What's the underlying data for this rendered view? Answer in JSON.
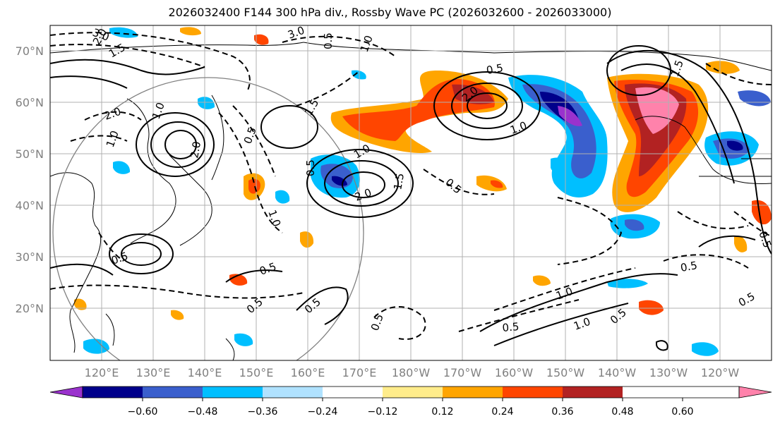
{
  "title": "2026032400 F144 300 hPa div., Rossby Wave PC (2026032600 - 2026033000)",
  "map": {
    "lat_labels": [
      "70°N",
      "60°N",
      "50°N",
      "40°N",
      "30°N",
      "20°N"
    ],
    "lon_labels": [
      "120°E",
      "130°E",
      "140°E",
      "150°E",
      "160°E",
      "170°E",
      "180°W",
      "170°W",
      "160°W",
      "150°W",
      "140°W",
      "130°W",
      "120°W"
    ],
    "contour_labels": [
      "3.0",
      "3.0",
      "1.5",
      "2.0",
      "1.0",
      "1.5",
      "0.5",
      "1.0",
      "2.0",
      "1.0",
      "2.0",
      "0.5",
      "1.0",
      "0.5",
      "2.0",
      "1.5",
      "1.0",
      "2.0",
      "0.5",
      "1.0",
      "0.5",
      "0.5",
      "0.5",
      "0.5",
      "0.5",
      "0.5",
      "1.0",
      "0.5",
      "1.0",
      "1.5",
      "0.5",
      "0.5",
      "0.5",
      "0.5"
    ],
    "colors": {
      "land_outline": "#000000",
      "grid": "#b0b0b0",
      "circle": "#808080"
    }
  },
  "colorbar": {
    "colors": [
      "#9a32cd",
      "#00008b",
      "#3a5fcd",
      "#00bfff",
      "#b0e2ff",
      "#ffffff",
      "#ffec8b",
      "#ffa500",
      "#ff4500",
      "#b22222",
      "#ff82ab"
    ],
    "tick_labels": [
      "−0.60",
      "−0.48",
      "−0.36",
      "−0.24",
      "−0.12",
      "0.12",
      "0.24",
      "0.36",
      "0.48",
      "0.60"
    ],
    "ticks": [
      -0.6,
      -0.48,
      -0.36,
      -0.24,
      -0.12,
      0.12,
      0.24,
      0.36,
      0.48,
      0.6
    ]
  }
}
